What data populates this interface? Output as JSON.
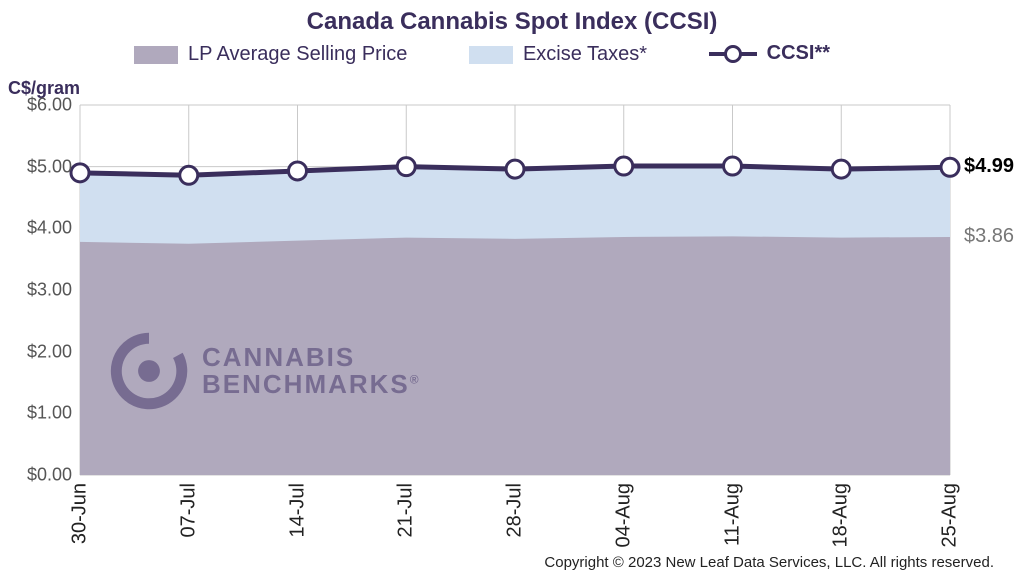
{
  "title": "Canada Cannabis Spot Index (CCSI)",
  "ylabel": "C$/gram",
  "legend": {
    "items": [
      {
        "key": "lp",
        "label": "LP Average Selling Price",
        "swatch_color": "#b0a9bd"
      },
      {
        "key": "excise",
        "label": "Excise Taxes*",
        "swatch_color": "#d0dff0"
      },
      {
        "key": "ccsi",
        "label": "CCSI**",
        "line_color": "#3a2e5c",
        "marker_fill": "#ffffff"
      }
    ]
  },
  "chart": {
    "type": "area_with_line",
    "categories": [
      "30-Jun",
      "07-Jul",
      "14-Jul",
      "21-Jul",
      "28-Jul",
      "04-Aug",
      "11-Aug",
      "18-Aug",
      "25-Aug"
    ],
    "series": {
      "lp": {
        "values": [
          3.78,
          3.75,
          3.8,
          3.85,
          3.83,
          3.86,
          3.87,
          3.85,
          3.86
        ],
        "fill": "#b0a9bd"
      },
      "excise": {
        "values": [
          4.9,
          4.86,
          4.93,
          5.0,
          4.96,
          5.01,
          5.01,
          4.96,
          4.99
        ],
        "fill": "#d0dff0"
      },
      "ccsi": {
        "values": [
          4.9,
          4.86,
          4.93,
          5.0,
          4.96,
          5.01,
          5.01,
          4.96,
          4.99
        ],
        "line_color": "#3a2e5c",
        "line_width": 5,
        "marker": {
          "shape": "circle",
          "fill": "#ffffff",
          "stroke": "#3a2e5c",
          "stroke_width": 3,
          "radius": 9
        }
      }
    },
    "ylim": [
      0,
      6
    ],
    "yticks": [
      0.0,
      1.0,
      2.0,
      3.0,
      4.0,
      5.0,
      6.0
    ],
    "ytick_fmt_prefix": "$",
    "ytick_decimals": 2,
    "grid_color": "#c9c9c9",
    "background_color": "#ffffff",
    "yaxis_fontsize": 18,
    "xaxis_fontsize": 20,
    "xaxis_rotation_deg": -90,
    "annotations": [
      {
        "text": "$4.99",
        "y": 4.99,
        "bold": true,
        "color": "#000000"
      },
      {
        "text": "$3.86",
        "y": 3.86,
        "bold": false,
        "color": "#777777"
      }
    ]
  },
  "watermark": {
    "line1": "CANNABIS",
    "line2": "BENCHMARKS",
    "reg": "®",
    "color": "#4a3c6e"
  },
  "copyright": "Copyright © 2023 New Leaf Data Services, LLC. All rights reserved."
}
